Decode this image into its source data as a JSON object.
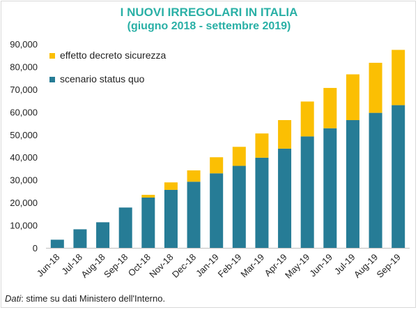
{
  "chart_data": {
    "type": "bar",
    "stacked": true,
    "title": "I NUOVI IRREGOLARI IN ITALIA",
    "subtitle": "(giugno 2018 - settembre 2019)",
    "categories": [
      "Jun-18",
      "Jul-18",
      "Aug-18",
      "Sep-18",
      "Oct-18",
      "Nov-18",
      "Dec-18",
      "Jan-19",
      "Feb-19",
      "Mar-19",
      "Apr-19",
      "May-19",
      "Jun-19",
      "Jul-19",
      "Aug-19",
      "Sep-19"
    ],
    "series": [
      {
        "name": "scenario status quo",
        "color": "#267c96",
        "values": [
          3600,
          8200,
          11300,
          17800,
          22200,
          25600,
          29200,
          32900,
          36200,
          39800,
          43800,
          49200,
          52800,
          56400,
          59600,
          63000
        ]
      },
      {
        "name": "effetto decreto sicurezza",
        "color": "#fbbf03",
        "values": [
          0,
          0,
          0,
          0,
          1200,
          3300,
          5000,
          7100,
          8400,
          10700,
          12600,
          15400,
          17800,
          20200,
          22100,
          24400
        ]
      }
    ],
    "ylim": [
      0,
      90000
    ],
    "yticks": [
      "0",
      "10,000",
      "20,000",
      "30,000",
      "40,000",
      "50,000",
      "60,000",
      "70,000",
      "80,000",
      "90,000"
    ],
    "ytick_values": [
      0,
      10000,
      20000,
      30000,
      40000,
      50000,
      60000,
      70000,
      80000,
      90000
    ],
    "grid": false,
    "legend_position": "top-left"
  },
  "footnote": {
    "label": "Dati",
    "text": ": stime su dati Ministero dell'Interno."
  }
}
